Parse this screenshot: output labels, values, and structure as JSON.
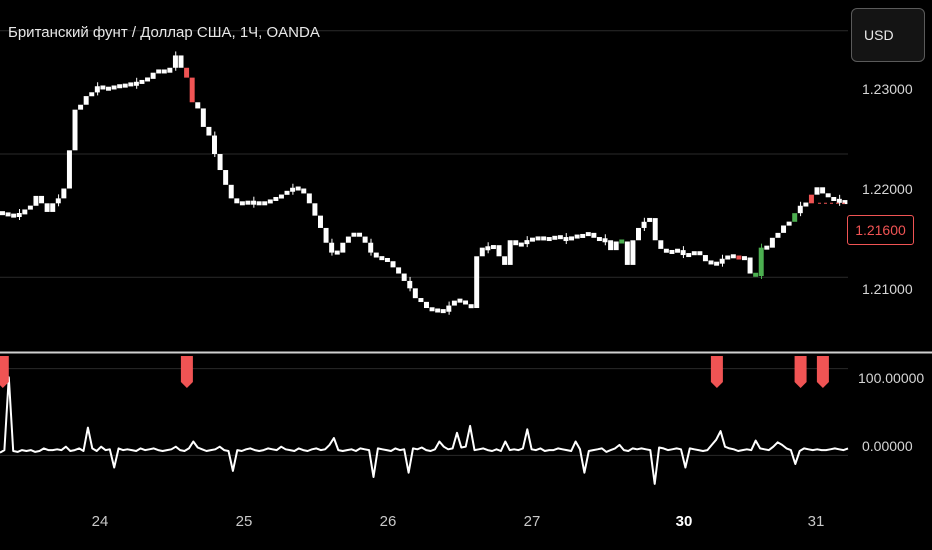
{
  "header": {
    "title": "Британский фунт / Доллар США, 1Ч, OANDA",
    "currency_label": "USD"
  },
  "colors": {
    "background": "#000000",
    "candle_neutral": "#ffffff",
    "candle_bear": "#f05454",
    "candle_bull": "#4caf50",
    "grid": "#2a2a2a",
    "separator": "#d0d0d0",
    "signal": "#f05454",
    "indicator_line": "#ffffff"
  },
  "price_axis": {
    "ticks": [
      "1.23000",
      "1.22000",
      "1.21000"
    ],
    "last_price": "1.21600"
  },
  "indicator_axis": {
    "ticks": [
      "100.00000",
      "0.00000"
    ]
  },
  "time_axis": {
    "ticks": [
      {
        "label": "24",
        "bold": false
      },
      {
        "label": "25",
        "bold": false
      },
      {
        "label": "26",
        "bold": false
      },
      {
        "label": "27",
        "bold": false
      },
      {
        "label": "30",
        "bold": true
      },
      {
        "label": "31",
        "bold": false
      }
    ]
  },
  "chart_data": {
    "type": "line",
    "price_range": [
      1.2045,
      1.2325
    ],
    "indicator_range": [
      -40,
      110
    ],
    "price_series": {
      "name": "",
      "values": [
        1.2152,
        1.215,
        1.215,
        1.2151,
        1.2155,
        1.2158,
        1.2166,
        1.216,
        1.2153,
        1.216,
        1.2164,
        1.2172,
        1.2203,
        1.2236,
        1.224,
        1.2247,
        1.225,
        1.2255,
        1.2253,
        1.2253,
        1.2255,
        1.2255,
        1.2256,
        1.2257,
        1.2257,
        1.226,
        1.2261,
        1.2266,
        1.2268,
        1.2266,
        1.227,
        1.228,
        1.227,
        1.2262,
        1.2242,
        1.2237,
        1.2222,
        1.2215,
        1.22,
        1.2187,
        1.2175,
        1.2164,
        1.216,
        1.216,
        1.2161,
        1.216,
        1.216,
        1.216,
        1.2163,
        1.2164,
        1.2167,
        1.217,
        1.2172,
        1.2172,
        1.2168,
        1.216,
        1.215,
        1.214,
        1.2128,
        1.212,
        1.212,
        1.2128,
        1.2133,
        1.2136,
        1.2133,
        1.2128,
        1.212,
        1.2116,
        1.2115,
        1.2113,
        1.2108,
        1.2103,
        1.2097,
        1.2091,
        1.2083,
        1.208,
        1.2075,
        1.2073,
        1.2073,
        1.2072,
        1.2077,
        1.2081,
        1.2081,
        1.2078,
        1.2075,
        1.2117,
        1.2124,
        1.2123,
        1.2126,
        1.2117,
        1.211,
        1.213,
        1.2126,
        1.2127,
        1.213,
        1.2131,
        1.2132,
        1.2131,
        1.2131,
        1.2133,
        1.2132,
        1.213,
        1.2133,
        1.2133,
        1.2134,
        1.2136,
        1.2132,
        1.213,
        1.213,
        1.2122,
        1.2129,
        1.2129,
        1.211,
        1.213,
        1.214,
        1.2145,
        1.2148,
        1.213,
        1.2123,
        1.212,
        1.2121,
        1.2122,
        1.2118,
        1.2118,
        1.2121,
        1.2118,
        1.2113,
        1.2111,
        1.2111,
        1.2115,
        1.2117,
        1.2117,
        1.2115,
        1.2116,
        1.2103,
        1.2101,
        1.2124,
        1.2124,
        1.2132,
        1.2136,
        1.2142,
        1.2145,
        1.2152,
        1.2158,
        1.216,
        1.2167,
        1.2173,
        1.2168,
        1.2165,
        1.2162,
        1.2162,
        1.216
      ]
    },
    "indicator_series": {
      "name": "",
      "values": [
        3,
        6,
        90,
        5,
        4,
        6,
        5,
        6,
        4,
        5,
        8,
        6,
        6,
        7,
        6,
        10,
        5,
        6,
        8,
        5,
        32,
        8,
        5,
        10,
        6,
        7,
        -14,
        8,
        6,
        7,
        6,
        5,
        8,
        6,
        7,
        8,
        6,
        5,
        6,
        7,
        10,
        6,
        5,
        8,
        16,
        9,
        7,
        5,
        6,
        7,
        10,
        6,
        5,
        -18,
        6,
        5,
        7,
        8,
        6,
        5,
        6,
        8,
        7,
        6,
        10,
        7,
        6,
        5,
        8,
        6,
        5,
        7,
        8,
        6,
        7,
        12,
        20,
        6,
        5,
        6,
        7,
        5,
        8,
        7,
        6,
        -25,
        8,
        7,
        6,
        5,
        8,
        6,
        7,
        -20,
        8,
        7,
        9,
        6,
        5,
        7,
        16,
        10,
        7,
        8,
        26,
        9,
        10,
        34,
        6,
        7,
        8,
        6,
        5,
        7,
        5,
        16,
        6,
        7,
        6,
        8,
        30,
        7,
        6,
        8,
        5,
        6,
        6,
        8,
        7,
        6,
        5,
        16,
        7,
        -20,
        5,
        6,
        7,
        8,
        4,
        6,
        8,
        12,
        6,
        5,
        8,
        7,
        8,
        7,
        6,
        -33,
        9,
        8,
        6,
        7,
        8,
        7,
        -14,
        8,
        7,
        6,
        5,
        6,
        12,
        18,
        28,
        10,
        8,
        7,
        5,
        6,
        7,
        6,
        17,
        8,
        7,
        6,
        10,
        15,
        12,
        8,
        6,
        -10,
        5,
        8,
        7,
        6,
        7,
        6,
        6,
        7,
        8,
        7,
        6,
        8
      ]
    },
    "candle_colors": {
      "bear_indices": [
        33,
        34,
        132,
        145
      ],
      "bull_indices": [
        111,
        135,
        136,
        142
      ]
    },
    "signal_markers_at_candle": [
      0,
      33,
      128,
      143,
      147
    ]
  }
}
